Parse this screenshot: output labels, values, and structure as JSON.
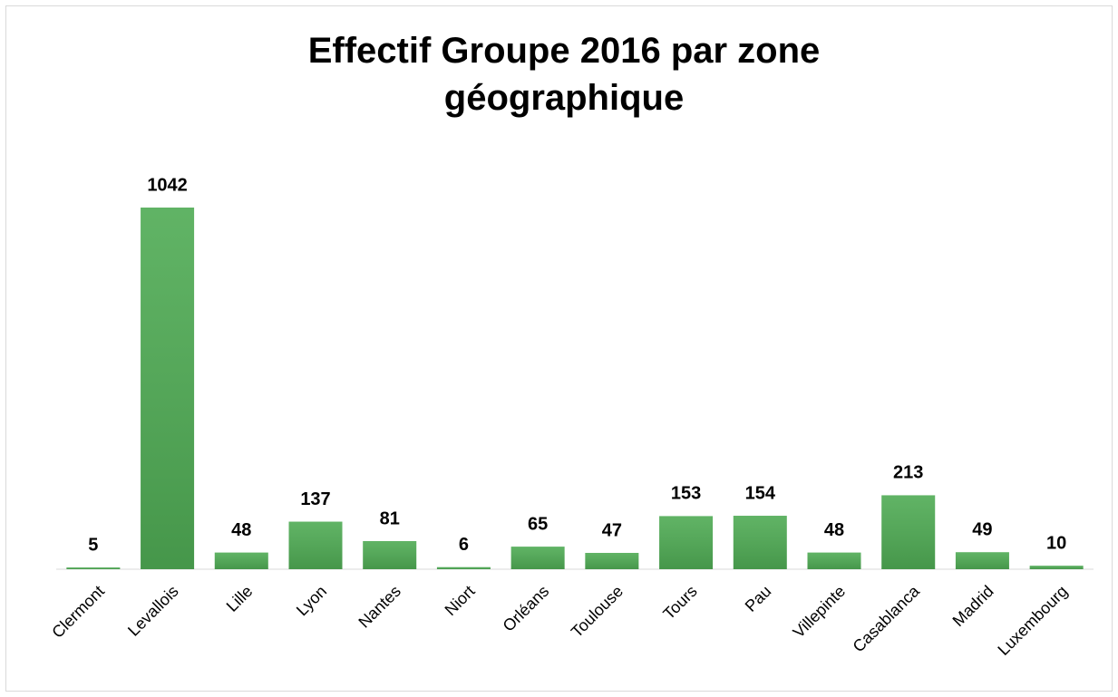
{
  "chart_data": {
    "type": "bar",
    "title": "Effectif Groupe 2016 par zone géographique",
    "categories": [
      "Clermont",
      "Levallois",
      "Lille",
      "Lyon",
      "Nantes",
      "Niort",
      "Orléans",
      "Toulouse",
      "Tours",
      "Pau",
      "Villepinte",
      "Casablanca",
      "Madrid",
      "Luxembourg"
    ],
    "values": [
      5,
      1042,
      48,
      137,
      81,
      6,
      65,
      47,
      153,
      154,
      48,
      213,
      49,
      10
    ],
    "color": "#4fab54"
  }
}
